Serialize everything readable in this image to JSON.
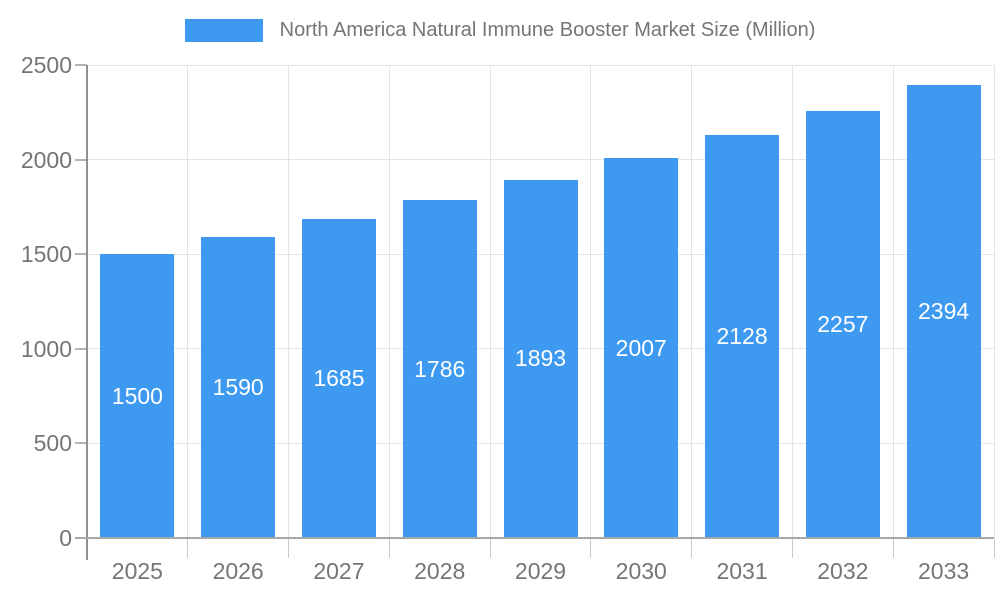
{
  "chart_data": {
    "type": "bar",
    "title": "North America Natural Immune Booster Market Size (Million)",
    "categories": [
      "2025",
      "2026",
      "2027",
      "2028",
      "2029",
      "2030",
      "2031",
      "2032",
      "2033"
    ],
    "values": [
      1500,
      1590,
      1685,
      1786,
      1893,
      2007,
      2128,
      2257,
      2394
    ],
    "xlabel": "",
    "ylabel": "",
    "ylim": [
      0,
      2500
    ],
    "yticks": [
      0,
      500,
      1000,
      1500,
      2000,
      2500
    ],
    "grid": true,
    "legend_position": "top",
    "legend_entries": [
      "North America Natural Immune Booster Market Size (Million)"
    ],
    "bar_color": "#3E9AF0",
    "data_label_color": "#ffffff",
    "axis_text_color": "#757575",
    "gridline_color": "#e4e4e4"
  }
}
